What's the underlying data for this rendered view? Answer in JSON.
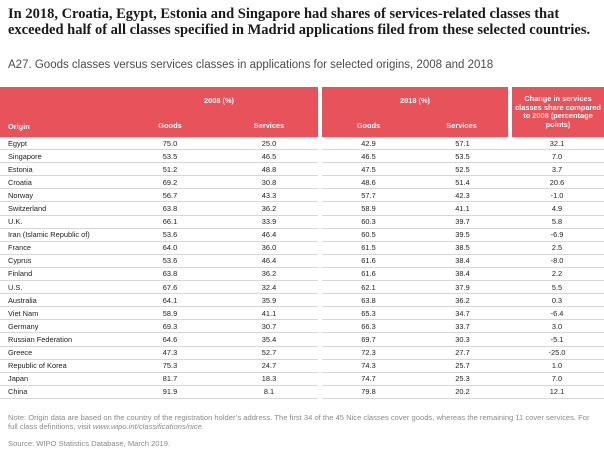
{
  "headline": "In 2018, Croatia, Egypt, Estonia and Singapore had shares of services-related classes that exceeded half of all classes specified in Madrid applications filed from these selected countries.",
  "subtitle": "A27. Goods classes versus services classes in applications for selected origins, 2008 and 2018",
  "table": {
    "header": {
      "origin": "Origin",
      "group_2008": "2008 (%)",
      "group_2018": "2018 (%)",
      "change": "Change in services classes share compared to 2008 (percentage points)",
      "goods": "Goods",
      "services": "Services"
    },
    "rows": [
      {
        "origin": "Egypt",
        "g2008": "75.0",
        "s2008": "25.0",
        "g2018": "42.9",
        "s2018": "57.1",
        "change": "32.1"
      },
      {
        "origin": "Singapore",
        "g2008": "53.5",
        "s2008": "46.5",
        "g2018": "46.5",
        "s2018": "53.5",
        "change": "7.0"
      },
      {
        "origin": "Estonia",
        "g2008": "51.2",
        "s2008": "48.8",
        "g2018": "47.5",
        "s2018": "52.5",
        "change": "3.7"
      },
      {
        "origin": "Croatia",
        "g2008": "69.2",
        "s2008": "30.8",
        "g2018": "48.6",
        "s2018": "51.4",
        "change": "20.6"
      },
      {
        "origin": "Norway",
        "g2008": "56.7",
        "s2008": "43.3",
        "g2018": "57.7",
        "s2018": "42.3",
        "change": "-1.0"
      },
      {
        "origin": "Switzerland",
        "g2008": "63.8",
        "s2008": "36.2",
        "g2018": "58.9",
        "s2018": "41.1",
        "change": "4.9"
      },
      {
        "origin": "U.K.",
        "g2008": "66.1",
        "s2008": "33.9",
        "g2018": "60.3",
        "s2018": "39.7",
        "change": "5.8"
      },
      {
        "origin": "Iran (Islamic Republic of)",
        "g2008": "53.6",
        "s2008": "46.4",
        "g2018": "60.5",
        "s2018": "39.5",
        "change": "-6.9"
      },
      {
        "origin": "France",
        "g2008": "64.0",
        "s2008": "36.0",
        "g2018": "61.5",
        "s2018": "38.5",
        "change": "2.5"
      },
      {
        "origin": "Cyprus",
        "g2008": "53.6",
        "s2008": "46.4",
        "g2018": "61.6",
        "s2018": "38.4",
        "change": "-8.0"
      },
      {
        "origin": "Finland",
        "g2008": "63.8",
        "s2008": "36.2",
        "g2018": "61.6",
        "s2018": "38.4",
        "change": "2.2"
      },
      {
        "origin": "U.S.",
        "g2008": "67.6",
        "s2008": "32.4",
        "g2018": "62.1",
        "s2018": "37.9",
        "change": "5.5"
      },
      {
        "origin": "Australia",
        "g2008": "64.1",
        "s2008": "35.9",
        "g2018": "63.8",
        "s2018": "36.2",
        "change": "0.3"
      },
      {
        "origin": "Viet Nam",
        "g2008": "58.9",
        "s2008": "41.1",
        "g2018": "65.3",
        "s2018": "34.7",
        "change": "-6.4"
      },
      {
        "origin": "Germany",
        "g2008": "69.3",
        "s2008": "30.7",
        "g2018": "66.3",
        "s2018": "33.7",
        "change": "3.0"
      },
      {
        "origin": "Russian Federation",
        "g2008": "64.6",
        "s2008": "35.4",
        "g2018": "69.7",
        "s2018": "30.3",
        "change": "-5.1"
      },
      {
        "origin": "Greece",
        "g2008": "47.3",
        "s2008": "52.7",
        "g2018": "72.3",
        "s2018": "27.7",
        "change": "-25.0"
      },
      {
        "origin": "Republic of Korea",
        "g2008": "75.3",
        "s2008": "24.7",
        "g2018": "74.3",
        "s2018": "25.7",
        "change": "1.0"
      },
      {
        "origin": "Japan",
        "g2008": "81.7",
        "s2008": "18.3",
        "g2018": "74.7",
        "s2018": "25.3",
        "change": "7.0"
      },
      {
        "origin": "China",
        "g2008": "91.9",
        "s2008": "8.1",
        "g2018": "79.8",
        "s2018": "20.2",
        "change": "12.1"
      }
    ]
  },
  "note": {
    "prefix": "Note: Origin data are based on the country of the registration holder’s address. The first 34 of the 45 Nice classes cover goods, whereas the remaining 11 cover services. For full class definitions, visit ",
    "link": "www.wipo.int/classifications/nice",
    "suffix": "."
  },
  "source": "Source: WIPO Statistics Database, March 2019.",
  "colors": {
    "header_bg": "#e8525b",
    "header_text": "#ffffff",
    "rule": "#d7d7d7"
  }
}
